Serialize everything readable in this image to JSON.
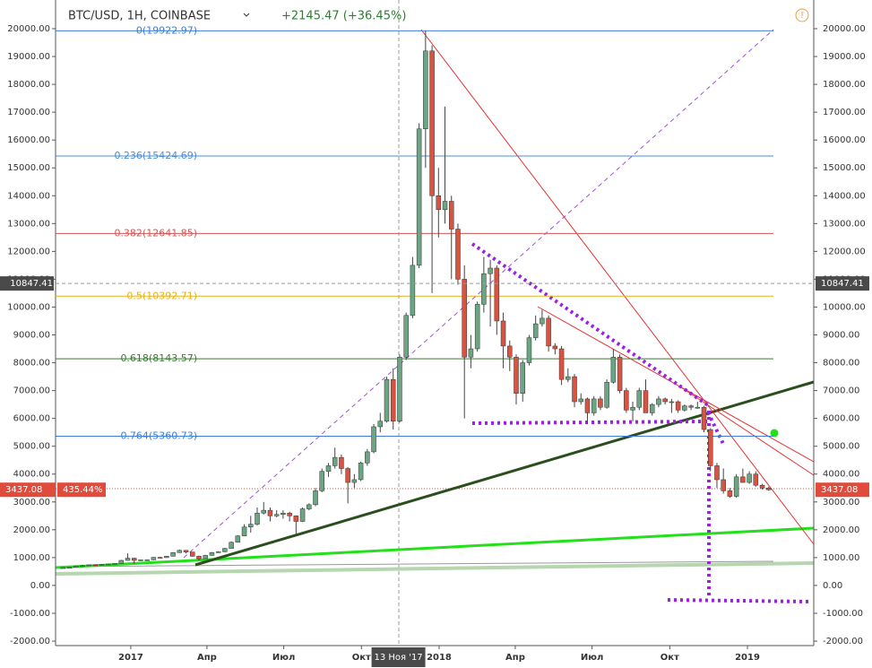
{
  "chart_data": {
    "type": "candlestick",
    "symbol": "BTC/USD, 1H, COINBASE",
    "change": "+2145.47 (+36.45%)",
    "up_color": "#6ba583",
    "down_color": "#d75442",
    "xlim": [
      2016.756,
      2019.215
    ],
    "ylim": [
      -2160,
      21030
    ],
    "xticks": [
      2017,
      {
        "value": 2017.247,
        "label": "Апр"
      },
      {
        "value": 2017.496,
        "label": "Июл"
      },
      {
        "value": 2017.748,
        "label": "Окт"
      },
      2018,
      {
        "value": 2018.247,
        "label": "Апр"
      },
      {
        "value": 2018.496,
        "label": "Июл"
      },
      {
        "value": 2018.748,
        "label": "Окт"
      },
      2019
    ],
    "yticks": [
      {
        "value": -2000,
        "label": "-2000.00"
      },
      {
        "value": -1000,
        "label": "-1000.00"
      },
      {
        "value": 0,
        "label": "0.00"
      },
      {
        "value": 1000,
        "label": "1000.00"
      },
      {
        "value": 2000,
        "label": "2000.00"
      },
      {
        "value": 3000,
        "label": "3000.00"
      },
      {
        "value": 4000,
        "label": "4000.00"
      },
      {
        "value": 5000,
        "label": "5000.00"
      },
      {
        "value": 6000,
        "label": "6000.00"
      },
      {
        "value": 7000,
        "label": "7000.00"
      },
      {
        "value": 8000,
        "label": "8000.00"
      },
      {
        "value": 9000,
        "label": "9000.00"
      },
      {
        "value": 10000,
        "label": "10000.00"
      },
      {
        "value": 11000,
        "label": "11000.00"
      },
      {
        "value": 12000,
        "label": "12000.00"
      },
      {
        "value": 13000,
        "label": "13000.00"
      },
      {
        "value": 14000,
        "label": "14000.00"
      },
      {
        "value": 15000,
        "label": "15000.00"
      },
      {
        "value": 16000,
        "label": "16000.00"
      },
      {
        "value": 17000,
        "label": "17000.00"
      },
      {
        "value": 18000,
        "label": "18000.00"
      },
      {
        "value": 19000,
        "label": "19000.00"
      },
      {
        "value": 20000,
        "label": "20000.00"
      }
    ],
    "fib_levels": [
      {
        "label": "0(19922.97)",
        "value": 19922.97,
        "color": "#3d7fd1"
      },
      {
        "label": "0.236(15424.69)",
        "value": 15424.69,
        "color": "#4a8fd6"
      },
      {
        "label": "0.382(12641.85)",
        "value": 12641.85,
        "color": "#d05858"
      },
      {
        "label": "0.5(10392.71)",
        "value": 10392.71,
        "color": "#e8b21a"
      },
      {
        "label": "0.618(8143.57)",
        "value": 8143.57,
        "color": "#3b7a34"
      },
      {
        "label": "0.764(5360.73)",
        "value": 5360.73,
        "color": "#3d7fd1"
      }
    ],
    "crosshair": {
      "x": 2017.868,
      "x_label": "13 Ноя '17",
      "price": 10847.41
    },
    "last_price": 3437.08,
    "last_change": "435.44%",
    "x": [
      2016.78,
      2016.801,
      2016.822,
      2016.843,
      2016.864,
      2016.885,
      2016.906,
      2016.927,
      2016.948,
      2016.969,
      2016.99,
      2017.011,
      2017.032,
      2017.053,
      2017.074,
      2017.095,
      2017.116,
      2017.137,
      2017.158,
      2017.179,
      2017.2,
      2017.221,
      2017.242,
      2017.263,
      2017.284,
      2017.305,
      2017.326,
      2017.347,
      2017.368,
      2017.389,
      2017.41,
      2017.431,
      2017.452,
      2017.473,
      2017.494,
      2017.515,
      2017.536,
      2017.557,
      2017.578,
      2017.599,
      2017.62,
      2017.641,
      2017.662,
      2017.683,
      2017.704,
      2017.725,
      2017.746,
      2017.767,
      2017.788,
      2017.809,
      2017.83,
      2017.851,
      2017.872,
      2017.893,
      2017.914,
      2017.935,
      2017.956,
      2017.977,
      2017.998,
      2018.019,
      2018.04,
      2018.061,
      2018.082,
      2018.103,
      2018.124,
      2018.145,
      2018.166,
      2018.187,
      2018.208,
      2018.229,
      2018.25,
      2018.271,
      2018.292,
      2018.313,
      2018.334,
      2018.355,
      2018.376,
      2018.397,
      2018.418,
      2018.439,
      2018.46,
      2018.481,
      2018.502,
      2018.523,
      2018.544,
      2018.565,
      2018.586,
      2018.607,
      2018.628,
      2018.649,
      2018.67,
      2018.691,
      2018.712,
      2018.733,
      2018.754,
      2018.775,
      2018.796,
      2018.817,
      2018.838,
      2018.859,
      2018.88,
      2018.901,
      2018.922,
      2018.943,
      2018.964,
      2018.985,
      2019.006,
      2019.027,
      2019.048,
      2019.069
    ],
    "ohlc": [
      [
        630,
        660,
        620,
        640
      ],
      [
        640,
        660,
        630,
        650
      ],
      [
        650,
        720,
        640,
        700
      ],
      [
        700,
        740,
        690,
        710
      ],
      [
        710,
        750,
        700,
        740
      ],
      [
        740,
        760,
        720,
        730
      ],
      [
        730,
        770,
        720,
        760
      ],
      [
        760,
        780,
        750,
        770
      ],
      [
        770,
        800,
        760,
        790
      ],
      [
        790,
        920,
        780,
        900
      ],
      [
        900,
        1150,
        890,
        980
      ],
      [
        980,
        990,
        780,
        900
      ],
      [
        900,
        930,
        880,
        920
      ],
      [
        920,
        940,
        890,
        920
      ],
      [
        920,
        1020,
        910,
        1010
      ],
      [
        1010,
        1030,
        980,
        1000
      ],
      [
        1000,
        1060,
        990,
        1050
      ],
      [
        1050,
        1200,
        1040,
        1180
      ],
      [
        1180,
        1290,
        1170,
        1260
      ],
      [
        1260,
        1270,
        1150,
        1200
      ],
      [
        1200,
        1210,
        1030,
        1050
      ],
      [
        1050,
        1070,
        900,
        960
      ],
      [
        960,
        1100,
        950,
        1080
      ],
      [
        1080,
        1200,
        1070,
        1180
      ],
      [
        1180,
        1230,
        1170,
        1210
      ],
      [
        1210,
        1350,
        1200,
        1330
      ],
      [
        1330,
        1580,
        1320,
        1550
      ],
      [
        1550,
        1800,
        1540,
        1780
      ],
      [
        1780,
        2200,
        1770,
        2100
      ],
      [
        2100,
        2500,
        1900,
        2200
      ],
      [
        2200,
        2800,
        2150,
        2600
      ],
      [
        2600,
        3000,
        2550,
        2700
      ],
      [
        2700,
        2800,
        2300,
        2500
      ],
      [
        2500,
        2700,
        2450,
        2550
      ],
      [
        2550,
        2700,
        2400,
        2600
      ],
      [
        2600,
        2650,
        2300,
        2500
      ],
      [
        2500,
        2520,
        1850,
        2300
      ],
      [
        2300,
        2800,
        2280,
        2750
      ],
      [
        2750,
        2950,
        2700,
        2900
      ],
      [
        2900,
        3500,
        2850,
        3400
      ],
      [
        3400,
        4200,
        3350,
        4100
      ],
      [
        4100,
        4400,
        3900,
        4300
      ],
      [
        4300,
        4950,
        4200,
        4600
      ],
      [
        4600,
        4700,
        4000,
        4200
      ],
      [
        4200,
        4250,
        2950,
        3700
      ],
      [
        3700,
        4000,
        3500,
        3800
      ],
      [
        3800,
        4450,
        3750,
        4400
      ],
      [
        4400,
        4900,
        4300,
        4800
      ],
      [
        4800,
        5800,
        4750,
        5700
      ],
      [
        5700,
        6200,
        5500,
        5900
      ],
      [
        5900,
        7500,
        5850,
        7400
      ],
      [
        7400,
        7800,
        5600,
        5900
      ],
      [
        5900,
        8300,
        5850,
        8200
      ],
      [
        8200,
        9800,
        8100,
        9700
      ],
      [
        9700,
        11800,
        9600,
        11500
      ],
      [
        11500,
        16600,
        11400,
        16400
      ],
      [
        16400,
        19923,
        15000,
        19200
      ],
      [
        19200,
        19400,
        10500,
        14000
      ],
      [
        14000,
        15000,
        12500,
        13500
      ],
      [
        13500,
        17200,
        13000,
        13800
      ],
      [
        13800,
        14000,
        11000,
        12800
      ],
      [
        12800,
        13000,
        10800,
        11000
      ],
      [
        11000,
        11500,
        6000,
        8200
      ],
      [
        8200,
        9000,
        7800,
        8500
      ],
      [
        8500,
        10200,
        8400,
        10100
      ],
      [
        10100,
        11800,
        9800,
        11200
      ],
      [
        11200,
        11700,
        9300,
        11400
      ],
      [
        11400,
        11500,
        9000,
        9500
      ],
      [
        9500,
        9800,
        7800,
        8600
      ],
      [
        8600,
        8800,
        7700,
        8200
      ],
      [
        8200,
        8300,
        6500,
        6900
      ],
      [
        6900,
        8100,
        6600,
        8000
      ],
      [
        8000,
        9000,
        7900,
        8900
      ],
      [
        8900,
        9700,
        8800,
        9400
      ],
      [
        9400,
        9900,
        9300,
        9600
      ],
      [
        9600,
        9700,
        8400,
        8600
      ],
      [
        8600,
        8700,
        8300,
        8500
      ],
      [
        8500,
        8600,
        7200,
        7400
      ],
      [
        7400,
        7800,
        7300,
        7500
      ],
      [
        7500,
        7600,
        6400,
        6600
      ],
      [
        6600,
        6900,
        6500,
        6700
      ],
      [
        6700,
        6750,
        5800,
        6200
      ],
      [
        6200,
        6800,
        6100,
        6700
      ],
      [
        6700,
        6800,
        6300,
        6400
      ],
      [
        6400,
        7400,
        6350,
        7300
      ],
      [
        7300,
        8500,
        7250,
        8200
      ],
      [
        8200,
        8300,
        6900,
        7000
      ],
      [
        7000,
        7100,
        6200,
        6300
      ],
      [
        6300,
        6600,
        5900,
        6400
      ],
      [
        6400,
        7100,
        6300,
        7000
      ],
      [
        7000,
        7400,
        6200,
        6200
      ],
      [
        6200,
        6550,
        6100,
        6500
      ],
      [
        6500,
        6800,
        6400,
        6700
      ],
      [
        6700,
        6750,
        6500,
        6600
      ],
      [
        6600,
        6700,
        6200,
        6600
      ],
      [
        6600,
        6650,
        6200,
        6300
      ],
      [
        6300,
        6500,
        6250,
        6450
      ],
      [
        6450,
        6500,
        6300,
        6400
      ],
      [
        6400,
        6600,
        6350,
        6400
      ],
      [
        6400,
        6450,
        5500,
        5600
      ],
      [
        5600,
        5650,
        4100,
        4300
      ],
      [
        4300,
        4400,
        3500,
        3800
      ],
      [
        3800,
        4200,
        3300,
        3400
      ],
      [
        3400,
        3500,
        3150,
        3200
      ],
      [
        3200,
        4000,
        3150,
        3900
      ],
      [
        3900,
        4200,
        3700,
        3700
      ],
      [
        3700,
        4100,
        3650,
        4000
      ],
      [
        4000,
        4100,
        3550,
        3600
      ],
      [
        3600,
        3650,
        3450,
        3500
      ],
      [
        3500,
        3550,
        3400,
        3437.08
      ]
    ]
  }
}
